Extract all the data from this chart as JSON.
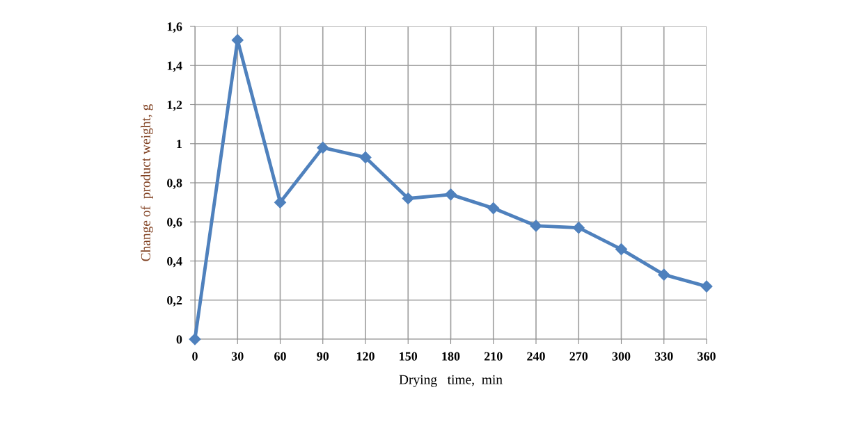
{
  "chart_data": {
    "type": "line",
    "xlabel": "Drying   time,  min",
    "ylabel": "Change of  product weight, g",
    "x": [
      0,
      30,
      60,
      90,
      120,
      150,
      180,
      210,
      240,
      270,
      300,
      330,
      360
    ],
    "series": [
      {
        "color": "#4f81bd",
        "values": [
          0,
          1.53,
          0.7,
          0.98,
          0.93,
          0.72,
          0.74,
          0.67,
          0.58,
          0.57,
          0.46,
          0.33,
          0.27
        ]
      }
    ],
    "xlim": [
      0,
      360
    ],
    "xticks": [
      0,
      30,
      60,
      90,
      120,
      150,
      180,
      210,
      240,
      270,
      300,
      330,
      360
    ],
    "ylim": [
      0,
      1.6
    ],
    "yticks": [
      0,
      {
        "value": 0.2,
        "label": "0,2"
      },
      {
        "value": 0.4,
        "label": "0,4"
      },
      {
        "value": 0.6,
        "label": "0,6"
      },
      {
        "value": 0.8,
        "label": "0,8"
      },
      1,
      {
        "value": 1.2,
        "label": "1,2"
      },
      {
        "value": 1.4,
        "label": "1,4"
      },
      {
        "value": 1.6,
        "label": "1,6"
      }
    ],
    "grid": true,
    "marker": "diamond",
    "line_style": "solid",
    "legend": false
  }
}
